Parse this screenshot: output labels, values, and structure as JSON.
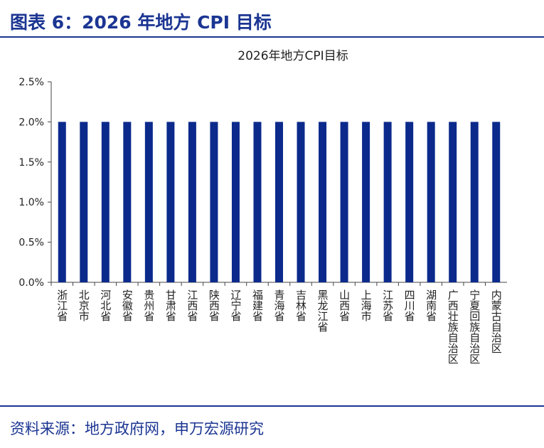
{
  "header": {
    "title": "图表 6：2026 年地方 CPI 目标"
  },
  "chart_data": {
    "type": "bar",
    "title": "2026年地方CPI目标",
    "categories": [
      "浙江省",
      "北京市",
      "河北省",
      "安徽省",
      "贵州省",
      "甘肃省",
      "江西省",
      "陕西省",
      "辽宁省",
      "福建省",
      "青海省",
      "吉林省",
      "黑龙江省",
      "山西省",
      "上海市",
      "江苏省",
      "四川省",
      "湖南省",
      "广西壮族自治区",
      "宁夏回族自治区",
      "内蒙古自治区"
    ],
    "values": [
      2.0,
      2.0,
      2.0,
      2.0,
      2.0,
      2.0,
      2.0,
      2.0,
      2.0,
      2.0,
      2.0,
      2.0,
      2.0,
      2.0,
      2.0,
      2.0,
      2.0,
      2.0,
      2.0,
      2.0,
      2.0
    ],
    "color": "#0b2a8c",
    "ylim": [
      0,
      2.5
    ],
    "yticks": [
      {
        "value": 0,
        "label": "0.0%"
      },
      {
        "value": 0.5,
        "label": "0.5%"
      },
      {
        "value": 1.0,
        "label": "1.0%"
      },
      {
        "value": 1.5,
        "label": "1.5%"
      },
      {
        "value": 2.0,
        "label": "2.0%"
      },
      {
        "value": 2.5,
        "label": "2.5%"
      }
    ],
    "grid": false
  },
  "footer": {
    "source": "资料来源：地方政府网，申万宏源研究"
  }
}
